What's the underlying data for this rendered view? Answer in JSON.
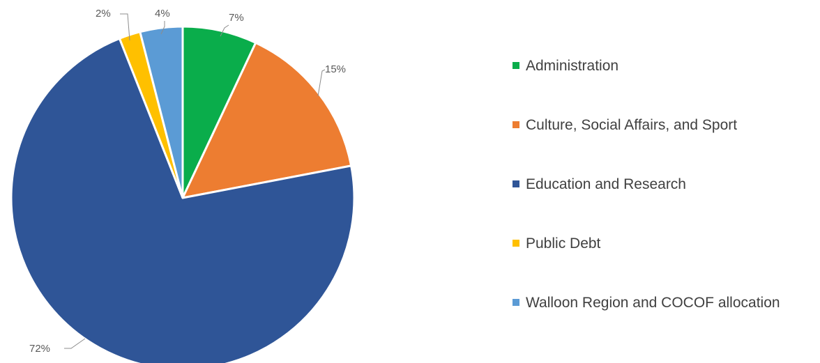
{
  "chart_data": {
    "type": "pie",
    "title": "",
    "start_angle_deg": 0,
    "direction": "clockwise",
    "legend_position": "right",
    "slices": [
      {
        "label": "Administration",
        "value": 7,
        "display": "7%",
        "color": "#0aad4b"
      },
      {
        "label": "Culture, Social Affairs, and Sport",
        "value": 15,
        "display": "15%",
        "color": "#ed7d31"
      },
      {
        "label": "Education and Research",
        "value": 72,
        "display": "72%",
        "color": "#2f5597"
      },
      {
        "label": "Public Debt",
        "value": 2,
        "display": "2%",
        "color": "#ffc000"
      },
      {
        "label": "Walloon Region and COCOF allocation",
        "value": 4,
        "display": "4%",
        "color": "#5b9bd5"
      }
    ]
  }
}
